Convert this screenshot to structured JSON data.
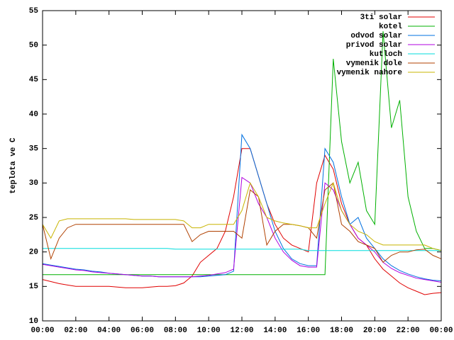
{
  "chart_data": {
    "type": "line",
    "ylabel": "teplota ve C",
    "x": [
      0,
      0.5,
      1,
      1.5,
      2,
      2.5,
      3,
      3.5,
      4,
      4.5,
      5,
      5.5,
      6,
      6.5,
      7,
      7.5,
      8,
      8.5,
      9,
      9.5,
      10,
      10.5,
      11,
      11.5,
      12,
      12.5,
      13,
      13.5,
      14,
      14.5,
      15,
      15.5,
      16,
      16.5,
      17,
      17.5,
      18,
      18.5,
      19,
      19.5,
      20,
      20.5,
      21,
      21.5,
      22,
      22.5,
      23,
      23.5,
      24
    ],
    "xlim": [
      0,
      24
    ],
    "xticks": [
      {
        "value": 0,
        "label": "00:00"
      },
      {
        "value": 2,
        "label": "02:00"
      },
      {
        "value": 4,
        "label": "04:00"
      },
      {
        "value": 6,
        "label": "06:00"
      },
      {
        "value": 8,
        "label": "08:00"
      },
      {
        "value": 10,
        "label": "10:00"
      },
      {
        "value": 12,
        "label": "12:00"
      },
      {
        "value": 14,
        "label": "14:00"
      },
      {
        "value": 16,
        "label": "16:00"
      },
      {
        "value": 18,
        "label": "18:00"
      },
      {
        "value": 20,
        "label": "20:00"
      },
      {
        "value": 22,
        "label": "22:00"
      },
      {
        "value": 24,
        "label": "00:00"
      }
    ],
    "ylim": [
      10,
      55
    ],
    "yticks": [
      10,
      15,
      20,
      25,
      30,
      35,
      40,
      45,
      50,
      55
    ],
    "legend": "top-right",
    "series": [
      {
        "name": "3ti solar",
        "color": "#e00000",
        "values": [
          16,
          15.7,
          15.4,
          15.2,
          15,
          15,
          15,
          15,
          15,
          14.9,
          14.8,
          14.8,
          14.8,
          14.9,
          15,
          15,
          15.1,
          15.5,
          16.5,
          18.5,
          19.5,
          20.5,
          23,
          28,
          35,
          35,
          31,
          27,
          24,
          22,
          21,
          20.5,
          20,
          30,
          34,
          32,
          27,
          24,
          22,
          21,
          19,
          17.5,
          16.5,
          15.5,
          14.8,
          14.3,
          13.8,
          14,
          14.1
        ]
      },
      {
        "name": "kotel",
        "color": "#00b000",
        "values": [
          16.7,
          16.7,
          16.7,
          16.7,
          16.7,
          16.7,
          16.7,
          16.7,
          16.7,
          16.7,
          16.7,
          16.7,
          16.7,
          16.7,
          16.7,
          16.7,
          16.7,
          16.7,
          16.7,
          16.7,
          16.7,
          16.7,
          16.7,
          16.7,
          16.7,
          16.7,
          16.7,
          16.7,
          16.7,
          16.7,
          16.7,
          16.7,
          16.7,
          16.7,
          16.7,
          48,
          36,
          30,
          33,
          26,
          24,
          52,
          38,
          42,
          28,
          23,
          20.5,
          20.5,
          20.2
        ]
      },
      {
        "name": "odvod solar",
        "color": "#0070e0",
        "values": [
          18.3,
          18.1,
          17.9,
          17.7,
          17.5,
          17.4,
          17.2,
          17.1,
          16.9,
          16.8,
          16.7,
          16.6,
          16.5,
          16.5,
          16.4,
          16.4,
          16.4,
          16.4,
          16.4,
          16.4,
          16.5,
          16.6,
          16.7,
          17.2,
          37,
          35,
          31,
          27,
          23,
          20.5,
          19,
          18.3,
          18,
          18,
          35,
          33,
          28,
          24,
          25,
          22,
          20.5,
          19,
          18,
          17.3,
          16.8,
          16.4,
          16.1,
          15.9,
          15.8
        ]
      },
      {
        "name": "privod solar",
        "color": "#b000e0",
        "values": [
          18.2,
          18,
          17.8,
          17.6,
          17.4,
          17.3,
          17.1,
          17,
          16.9,
          16.8,
          16.7,
          16.6,
          16.5,
          16.5,
          16.4,
          16.4,
          16.4,
          16.4,
          16.4,
          16.5,
          16.6,
          16.8,
          17,
          17.5,
          30.8,
          30,
          27,
          25,
          22,
          20,
          18.8,
          18,
          17.8,
          17.8,
          30,
          29,
          26,
          24,
          22,
          21,
          20,
          18.5,
          17.6,
          17,
          16.6,
          16.2,
          16,
          15.8,
          15.6
        ]
      },
      {
        "name": "kutloch",
        "color": "#00dddd",
        "values": [
          20.5,
          20.5,
          20.5,
          20.5,
          20.5,
          20.5,
          20.5,
          20.5,
          20.5,
          20.5,
          20.5,
          20.5,
          20.5,
          20.5,
          20.5,
          20.5,
          20.4,
          20.4,
          20.4,
          20.4,
          20.4,
          20.4,
          20.4,
          20.4,
          20.4,
          20.4,
          20.4,
          20.4,
          20.4,
          20.4,
          20.4,
          20.4,
          20.2,
          20.2,
          20.2,
          20.2,
          20.2,
          20.2,
          20.2,
          20.2,
          20.2,
          20.2,
          20.2,
          20.2,
          20.2,
          20.2,
          20.2,
          20.2,
          20.2
        ]
      },
      {
        "name": "vymenik dole",
        "color": "#b04000",
        "values": [
          24,
          19,
          22,
          23.5,
          24,
          24,
          24,
          24,
          24,
          24,
          24,
          24,
          24,
          24,
          24,
          24,
          24,
          24,
          21.5,
          22.5,
          23,
          23,
          23,
          23,
          22,
          29,
          28,
          21,
          23,
          24,
          24,
          23.8,
          23.5,
          22,
          29,
          30,
          24,
          23,
          21.5,
          21,
          20.5,
          18.5,
          19.5,
          20,
          20,
          20.3,
          20.4,
          19.5,
          19
        ]
      },
      {
        "name": "vymenik nahore",
        "color": "#c8b400",
        "values": [
          24,
          22,
          24.5,
          24.8,
          24.8,
          24.8,
          24.8,
          24.8,
          24.8,
          24.8,
          24.8,
          24.7,
          24.7,
          24.7,
          24.7,
          24.7,
          24.7,
          24.5,
          23.5,
          23.5,
          24,
          24,
          24,
          24,
          26,
          30,
          28,
          25,
          24.5,
          24.2,
          24,
          23.8,
          23.5,
          23.5,
          27,
          30,
          26,
          24,
          23,
          22.5,
          21.5,
          21,
          21,
          21,
          21,
          21,
          21,
          20.5,
          20.2
        ]
      }
    ]
  }
}
